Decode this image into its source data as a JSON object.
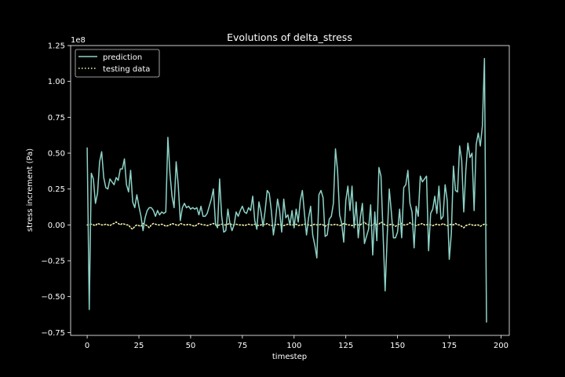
{
  "chart_data": {
    "type": "line",
    "title": "Evolutions of delta_stress",
    "xlabel": "timestep",
    "ylabel": "stress increment (Pa)",
    "y_scale_label": "1e8",
    "xlim": [
      -8,
      204
    ],
    "ylim": [
      -0.77,
      1.25
    ],
    "x_ticks": [
      0,
      25,
      50,
      75,
      100,
      125,
      150,
      175,
      200
    ],
    "x_tick_labels": [
      "0",
      "25",
      "50",
      "75",
      "100",
      "125",
      "150",
      "175",
      "200"
    ],
    "y_ticks": [
      -0.75,
      -0.5,
      -0.25,
      0.0,
      0.25,
      0.5,
      0.75,
      1.0,
      1.25
    ],
    "y_tick_labels": [
      "−0.75",
      "−0.50",
      "−0.25",
      "0.00",
      "0.25",
      "0.50",
      "0.75",
      "1.00",
      "1.25"
    ],
    "legend_position": "upper-left",
    "colors": {
      "prediction": "#8dd3c7",
      "testing": "#feffb3",
      "axes": "#ffffff",
      "background": "#000000"
    },
    "series": [
      {
        "name": "prediction",
        "style": "solid",
        "y": [
          0.54,
          -0.59,
          0.36,
          0.32,
          0.15,
          0.22,
          0.44,
          0.51,
          0.33,
          0.26,
          0.25,
          0.32,
          0.3,
          0.28,
          0.33,
          0.31,
          0.39,
          0.39,
          0.46,
          0.28,
          0.23,
          0.38,
          0.16,
          0.12,
          0.21,
          0.13,
          0.06,
          -0.04,
          0.05,
          0.1,
          0.12,
          0.12,
          0.1,
          0.06,
          0.1,
          0.07,
          0.09,
          0.08,
          0.09,
          0.61,
          0.36,
          0.2,
          0.12,
          0.44,
          0.28,
          0.03,
          0.12,
          0.15,
          0.12,
          0.13,
          0.11,
          0.12,
          0.11,
          0.12,
          0.07,
          0.13,
          0.06,
          0.06,
          0.08,
          0.13,
          0.18,
          0.25,
          0.01,
          -0.02,
          0.32,
          0.06,
          -0.05,
          -0.04,
          0.11,
          0.01,
          -0.04,
          0.0,
          0.09,
          0.06,
          0.1,
          0.13,
          0.09,
          0.08,
          0.12,
          0.1,
          0.2,
          0.03,
          -0.03,
          0.16,
          0.09,
          -0.01,
          0.1,
          0.24,
          0.22,
          0.1,
          -0.07,
          0.03,
          0.18,
          0.1,
          -0.05,
          0.18,
          0.05,
          0.07,
          0.0,
          0.1,
          -0.02,
          0.11,
          0.02,
          0.17,
          0.24,
          0.08,
          -0.07,
          0.05,
          0.13,
          -0.07,
          -0.14,
          -0.23,
          0.21,
          0.24,
          0.19,
          -0.08,
          -0.07,
          0.04,
          0.06,
          0.15,
          0.53,
          0.38,
          0.07,
          0.01,
          -0.12,
          0.17,
          0.27,
          0.1,
          0.27,
          -0.02,
          0.16,
          -0.09,
          0.05,
          0.15,
          -0.13,
          -0.08,
          -0.03,
          0.14,
          -0.21,
          0.09,
          -0.11,
          0.4,
          0.34,
          -0.06,
          -0.46,
          -0.08,
          0.25,
          0.09,
          -0.09,
          -0.09,
          -0.05,
          0.11,
          -0.09,
          0.26,
          0.28,
          0.38,
          0.15,
          0.09,
          -0.16,
          0.13,
          0.06,
          0.34,
          0.3,
          0.32,
          0.34,
          -0.18,
          0.08,
          0.11,
          0.2,
          0.08,
          0.27,
          0.04,
          0.06,
          0.28,
          0.17,
          -0.24,
          -0.06,
          0.41,
          0.24,
          0.23,
          0.55,
          0.45,
          0.09,
          0.38,
          0.57,
          0.47,
          0.5,
          0.1,
          0.56,
          0.64,
          0.55,
          0.69,
          1.16,
          -0.68
        ]
      },
      {
        "name": "testing data",
        "style": "dotted",
        "y": [
          0.0,
          0.0,
          0.005,
          0.0,
          -0.005,
          0.01,
          0.005,
          0.0,
          0.0,
          0.005,
          0.0,
          -0.005,
          0.005,
          0.01,
          0.02,
          0.01,
          0.0,
          0.01,
          0.005,
          0.0,
          0.0,
          -0.02,
          -0.03,
          -0.01,
          0.0,
          -0.005,
          -0.01,
          0.01,
          0.0,
          -0.005,
          -0.02,
          0.0,
          0.01,
          0.005,
          0.0,
          0.0,
          0.005,
          0.0,
          -0.01,
          -0.005,
          0.0,
          0.01,
          0.005,
          0.0,
          -0.005,
          0.01,
          0.005,
          0.0,
          0.0,
          0.005,
          0.0,
          -0.005,
          -0.01,
          0.0,
          0.01,
          0.005,
          0.0,
          0.0,
          -0.005,
          0.0,
          0.005,
          0.01,
          0.0,
          -0.005,
          0.0,
          0.005,
          0.0,
          0.0,
          0.005,
          0.01,
          0.0,
          0.0,
          0.005,
          0.0,
          0.0,
          0.0,
          -0.005,
          0.0,
          0.005,
          0.0,
          0.0,
          0.005,
          0.0,
          -0.005,
          0.0,
          0.005,
          0.0,
          0.01,
          0.0,
          -0.005,
          0.0,
          0.0,
          0.005,
          0.0,
          0.0,
          -0.005,
          0.0,
          0.005,
          0.0,
          0.0,
          0.0,
          0.005,
          -0.005,
          0.0,
          0.0,
          0.005,
          0.0,
          0.0,
          -0.005,
          0.0,
          0.005,
          0.0,
          0.0,
          0.005,
          0.0,
          -0.01,
          0.0,
          0.005,
          0.0,
          0.0,
          0.005,
          0.0,
          -0.005,
          0.0,
          0.01,
          0.005,
          0.0,
          0.0,
          -0.005,
          0.0,
          0.005,
          0.0,
          0.0,
          0.01,
          0.02,
          0.005,
          0.0,
          -0.005,
          0.0,
          0.01,
          0.0,
          0.005,
          0.02,
          0.01,
          0.0,
          -0.005,
          0.0,
          0.005,
          0.0,
          -0.01,
          0.0,
          0.005,
          0.01,
          0.0,
          0.0,
          0.005,
          0.015,
          0.005,
          0.0,
          -0.005,
          0.0,
          0.005,
          0.01,
          0.0,
          0.0,
          0.005,
          0.0,
          -0.005,
          0.0,
          0.005,
          0.0,
          0.0,
          0.01,
          0.0,
          -0.005,
          0.0,
          0.005,
          0.0,
          0.01,
          0.0,
          0.0,
          -0.01,
          -0.02,
          -0.005,
          0.0,
          0.005,
          0.0,
          -0.005,
          0.0,
          0.0,
          -0.01,
          0.0,
          0.005,
          0.0
        ]
      }
    ]
  }
}
